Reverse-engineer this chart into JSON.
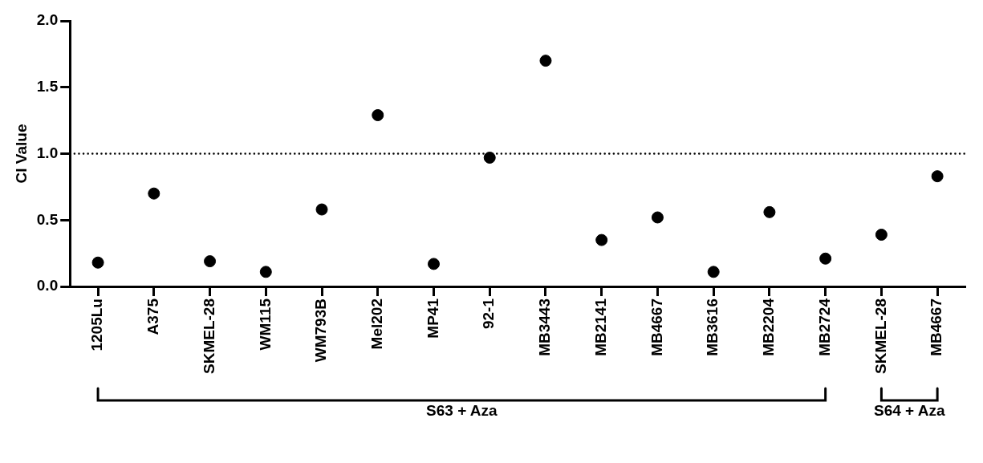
{
  "chart_data": {
    "type": "scatter",
    "ylabel": "CI Value",
    "categories": [
      "1205Lu",
      "A375",
      "SKMEL-28",
      "WM115",
      "WM793B",
      "Mel202",
      "MP41",
      "92-1",
      "MB3443",
      "MB2141",
      "MB4667",
      "MB3616",
      "MB2204",
      "MB2724",
      "SKMEL-28",
      "MB4667"
    ],
    "series": [
      {
        "color": "#000000",
        "values": [
          0.18,
          0.7,
          0.19,
          0.11,
          0.58,
          1.29,
          0.17,
          0.97,
          1.7,
          0.35,
          0.52,
          0.11,
          0.56,
          0.21,
          0.39,
          0.83
        ]
      }
    ],
    "ylim": [
      0,
      2
    ],
    "yticks": [
      {
        "value": 0,
        "label": "0.0"
      },
      {
        "value": 0.5,
        "label": "0.5"
      },
      {
        "value": 1,
        "label": "1.0"
      },
      {
        "value": 1.5,
        "label": "1.5"
      },
      {
        "value": 2,
        "label": "2.0"
      }
    ],
    "ref_lines": [
      {
        "axis": "y",
        "value": 1,
        "line_style": "dotted",
        "color": "#000000"
      }
    ],
    "annotations": [
      "S63 + Aza",
      "S64 + Aza"
    ],
    "grid": false,
    "legend": false,
    "marker": "circle"
  }
}
